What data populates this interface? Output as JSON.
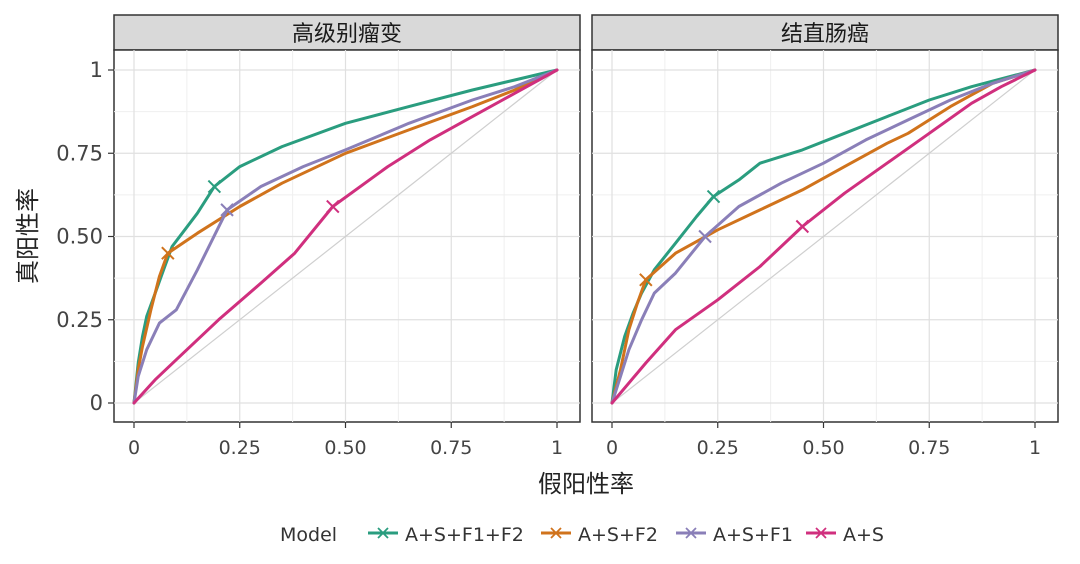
{
  "chart_data": {
    "type": "line",
    "xlabel": "假阳性率",
    "ylabel": "真阳性率",
    "xlim": [
      0,
      1
    ],
    "ylim": [
      0,
      1
    ],
    "x_ticks": [
      "0",
      "0.25",
      "0.50",
      "0.75",
      "1"
    ],
    "y_ticks": [
      "0",
      "0.25",
      "0.50",
      "0.75",
      "1"
    ],
    "grid": true,
    "reference_line": "diagonal",
    "legend": {
      "title": "Model",
      "position": "bottom",
      "entries": [
        "A+S+F1+F2",
        "A+S+F2",
        "A+S+F1",
        "A+S"
      ]
    },
    "colors": {
      "A+S+F1+F2": "#2a9d7f",
      "A+S+F2": "#d0731c",
      "A+S+F1": "#8a7fb8",
      "A+S": "#d02f7e"
    },
    "panels": [
      {
        "title": "高级别瘤变",
        "series": [
          {
            "name": "A+S+F1+F2",
            "points": [
              [
                0,
                0
              ],
              [
                0.01,
                0.12
              ],
              [
                0.02,
                0.2
              ],
              [
                0.03,
                0.26
              ],
              [
                0.05,
                0.33
              ],
              [
                0.07,
                0.4
              ],
              [
                0.09,
                0.47
              ],
              [
                0.12,
                0.52
              ],
              [
                0.15,
                0.57
              ],
              [
                0.19,
                0.65
              ],
              [
                0.25,
                0.71
              ],
              [
                0.35,
                0.77
              ],
              [
                0.5,
                0.84
              ],
              [
                0.65,
                0.89
              ],
              [
                0.8,
                0.94
              ],
              [
                0.9,
                0.97
              ],
              [
                1,
                1
              ]
            ],
            "marker": [
              0.19,
              0.65
            ]
          },
          {
            "name": "A+S+F2",
            "points": [
              [
                0,
                0
              ],
              [
                0.01,
                0.1
              ],
              [
                0.02,
                0.17
              ],
              [
                0.04,
                0.28
              ],
              [
                0.06,
                0.38
              ],
              [
                0.08,
                0.45
              ],
              [
                0.15,
                0.51
              ],
              [
                0.25,
                0.59
              ],
              [
                0.35,
                0.66
              ],
              [
                0.5,
                0.75
              ],
              [
                0.65,
                0.82
              ],
              [
                0.8,
                0.89
              ],
              [
                0.9,
                0.94
              ],
              [
                1,
                1
              ]
            ],
            "marker": [
              0.08,
              0.45
            ]
          },
          {
            "name": "A+S+F1",
            "points": [
              [
                0,
                0
              ],
              [
                0.01,
                0.08
              ],
              [
                0.03,
                0.16
              ],
              [
                0.06,
                0.24
              ],
              [
                0.1,
                0.28
              ],
              [
                0.15,
                0.4
              ],
              [
                0.22,
                0.58
              ],
              [
                0.3,
                0.65
              ],
              [
                0.4,
                0.71
              ],
              [
                0.5,
                0.76
              ],
              [
                0.65,
                0.84
              ],
              [
                0.8,
                0.91
              ],
              [
                0.9,
                0.95
              ],
              [
                1,
                1
              ]
            ],
            "marker": [
              0.22,
              0.58
            ]
          },
          {
            "name": "A+S",
            "points": [
              [
                0,
                0
              ],
              [
                0.05,
                0.07
              ],
              [
                0.1,
                0.13
              ],
              [
                0.2,
                0.25
              ],
              [
                0.3,
                0.36
              ],
              [
                0.38,
                0.45
              ],
              [
                0.47,
                0.59
              ],
              [
                0.6,
                0.71
              ],
              [
                0.7,
                0.79
              ],
              [
                0.8,
                0.86
              ],
              [
                0.9,
                0.93
              ],
              [
                1,
                1
              ]
            ],
            "marker": [
              0.47,
              0.59
            ]
          }
        ]
      },
      {
        "title": "结直肠癌",
        "series": [
          {
            "name": "A+S+F1+F2",
            "points": [
              [
                0,
                0
              ],
              [
                0.01,
                0.1
              ],
              [
                0.03,
                0.2
              ],
              [
                0.05,
                0.27
              ],
              [
                0.07,
                0.33
              ],
              [
                0.1,
                0.4
              ],
              [
                0.15,
                0.48
              ],
              [
                0.2,
                0.56
              ],
              [
                0.24,
                0.62
              ],
              [
                0.3,
                0.67
              ],
              [
                0.35,
                0.72
              ],
              [
                0.45,
                0.76
              ],
              [
                0.55,
                0.81
              ],
              [
                0.65,
                0.86
              ],
              [
                0.75,
                0.91
              ],
              [
                0.85,
                0.95
              ],
              [
                1,
                1
              ]
            ],
            "marker": [
              0.24,
              0.62
            ]
          },
          {
            "name": "A+S+F2",
            "points": [
              [
                0,
                0
              ],
              [
                0.02,
                0.1
              ],
              [
                0.04,
                0.22
              ],
              [
                0.06,
                0.3
              ],
              [
                0.08,
                0.37
              ],
              [
                0.15,
                0.45
              ],
              [
                0.25,
                0.52
              ],
              [
                0.35,
                0.58
              ],
              [
                0.45,
                0.64
              ],
              [
                0.55,
                0.71
              ],
              [
                0.65,
                0.78
              ],
              [
                0.7,
                0.81
              ],
              [
                0.8,
                0.89
              ],
              [
                0.9,
                0.96
              ],
              [
                1,
                1
              ]
            ],
            "marker": [
              0.08,
              0.37
            ]
          },
          {
            "name": "A+S+F1",
            "points": [
              [
                0,
                0
              ],
              [
                0.02,
                0.08
              ],
              [
                0.04,
                0.16
              ],
              [
                0.07,
                0.25
              ],
              [
                0.1,
                0.33
              ],
              [
                0.15,
                0.39
              ],
              [
                0.22,
                0.5
              ],
              [
                0.3,
                0.59
              ],
              [
                0.4,
                0.66
              ],
              [
                0.5,
                0.72
              ],
              [
                0.6,
                0.79
              ],
              [
                0.7,
                0.85
              ],
              [
                0.8,
                0.91
              ],
              [
                0.9,
                0.96
              ],
              [
                1,
                1
              ]
            ],
            "marker": [
              0.22,
              0.5
            ]
          },
          {
            "name": "A+S",
            "points": [
              [
                0,
                0
              ],
              [
                0.08,
                0.12
              ],
              [
                0.15,
                0.22
              ],
              [
                0.25,
                0.31
              ],
              [
                0.35,
                0.41
              ],
              [
                0.45,
                0.53
              ],
              [
                0.55,
                0.63
              ],
              [
                0.65,
                0.72
              ],
              [
                0.75,
                0.81
              ],
              [
                0.85,
                0.9
              ],
              [
                0.92,
                0.95
              ],
              [
                1,
                1
              ]
            ],
            "marker": [
              0.45,
              0.53
            ]
          }
        ]
      }
    ]
  }
}
